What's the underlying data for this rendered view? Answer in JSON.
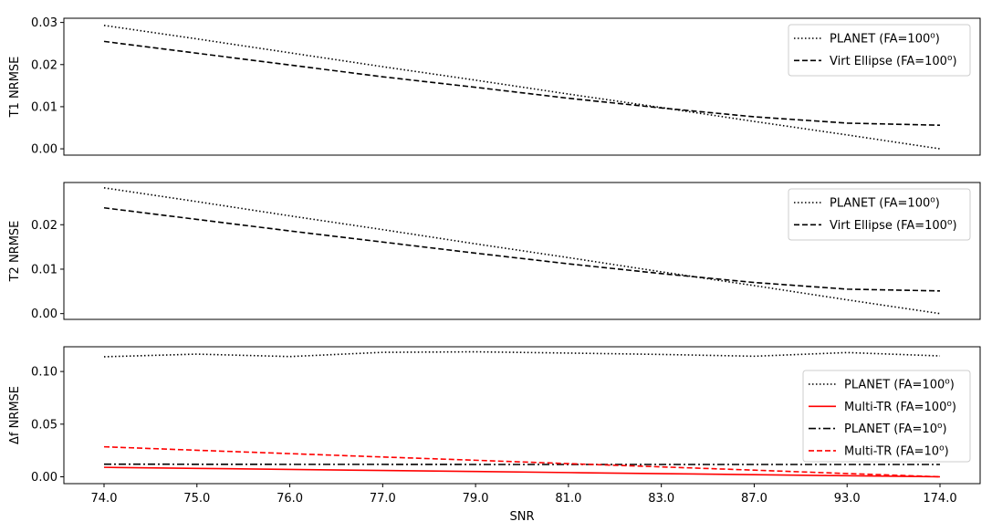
{
  "chart_data": [
    {
      "type": "line",
      "ylabel": "T1 NRMSE",
      "xlabel": "",
      "categories": [
        "74.0",
        "75.0",
        "76.0",
        "77.0",
        "79.0",
        "81.0",
        "83.0",
        "87.0",
        "93.0",
        "174.0"
      ],
      "ylim": [
        -0.0015,
        0.031
      ],
      "yticks": [
        "0.00",
        "0.01",
        "0.02",
        "0.03"
      ],
      "ytick_values": [
        0,
        0.01,
        0.02,
        0.03
      ],
      "show_xticks": false,
      "legend_position": "top-right",
      "series": [
        {
          "name": "PLANET (FA=100",
          "name_sup": "o",
          "name_end": ")",
          "color": "#000000",
          "dash": "dotted",
          "values": [
            0.0293,
            0.0261,
            0.0228,
            0.0195,
            0.0163,
            0.013,
            0.0098,
            0.0065,
            0.0033,
            0.0
          ]
        },
        {
          "name": "Virt Ellipse (FA=100",
          "name_sup": "o",
          "name_end": ")",
          "color": "#000000",
          "dash": "dashed",
          "values": [
            0.0255,
            0.0227,
            0.0199,
            0.0171,
            0.0146,
            0.012,
            0.0097,
            0.0076,
            0.0061,
            0.0056
          ]
        }
      ]
    },
    {
      "type": "line",
      "ylabel": "T2 NRMSE",
      "xlabel": "",
      "categories": [
        "74.0",
        "75.0",
        "76.0",
        "77.0",
        "79.0",
        "81.0",
        "83.0",
        "87.0",
        "93.0",
        "174.0"
      ],
      "ylim": [
        -0.0013,
        0.0295
      ],
      "yticks": [
        "0.00",
        "0.01",
        "0.02"
      ],
      "ytick_values": [
        0,
        0.01,
        0.02
      ],
      "show_xticks": false,
      "legend_position": "top-right",
      "series": [
        {
          "name": "PLANET (FA=100",
          "name_sup": "o",
          "name_end": ")",
          "color": "#000000",
          "dash": "dotted",
          "values": [
            0.0283,
            0.0252,
            0.022,
            0.0189,
            0.0157,
            0.0126,
            0.0094,
            0.0063,
            0.0031,
            0.0
          ]
        },
        {
          "name": "Virt Ellipse (FA=100",
          "name_sup": "o",
          "name_end": ")",
          "color": "#000000",
          "dash": "dashed",
          "values": [
            0.0238,
            0.0212,
            0.0186,
            0.0161,
            0.0136,
            0.0112,
            0.009,
            0.007,
            0.0055,
            0.0051
          ]
        }
      ]
    },
    {
      "type": "line",
      "ylabel": "Δf NRMSE",
      "xlabel": "SNR",
      "categories": [
        "74.0",
        "75.0",
        "76.0",
        "77.0",
        "79.0",
        "81.0",
        "83.0",
        "87.0",
        "93.0",
        "174.0"
      ],
      "ylim": [
        -0.0065,
        0.1235
      ],
      "yticks": [
        "0.00",
        "0.05",
        "0.10"
      ],
      "ytick_values": [
        0,
        0.05,
        0.1
      ],
      "show_xticks": true,
      "legend_position": "right",
      "series": [
        {
          "name": "PLANET (FA=100",
          "name_sup": "o",
          "name_end": ")",
          "color": "#000000",
          "dash": "dotted",
          "values": [
            0.114,
            0.1165,
            0.1142,
            0.1182,
            0.1187,
            0.1175,
            0.1162,
            0.1145,
            0.118,
            0.1148
          ]
        },
        {
          "name": "Multi-TR (FA=100",
          "name_sup": "o",
          "name_end": ")",
          "color": "#ff0000",
          "dash": "solid",
          "values": [
            0.009,
            0.008,
            0.007,
            0.006,
            0.005,
            0.004,
            0.003,
            0.002,
            0.001,
            0.0
          ]
        },
        {
          "name": "PLANET (FA=10",
          "name_sup": "o",
          "name_end": ")",
          "color": "#000000",
          "dash": "dashdot",
          "values": [
            0.012,
            0.0119,
            0.0118,
            0.0118,
            0.0117,
            0.0117,
            0.0117,
            0.0117,
            0.0117,
            0.0117
          ]
        },
        {
          "name": "Multi-TR (FA=10",
          "name_sup": "o",
          "name_end": ")",
          "color": "#ff0000",
          "dash": "dashed",
          "values": [
            0.0285,
            0.0252,
            0.022,
            0.0188,
            0.0157,
            0.0125,
            0.0094,
            0.0063,
            0.0031,
            0.0
          ]
        }
      ]
    }
  ]
}
